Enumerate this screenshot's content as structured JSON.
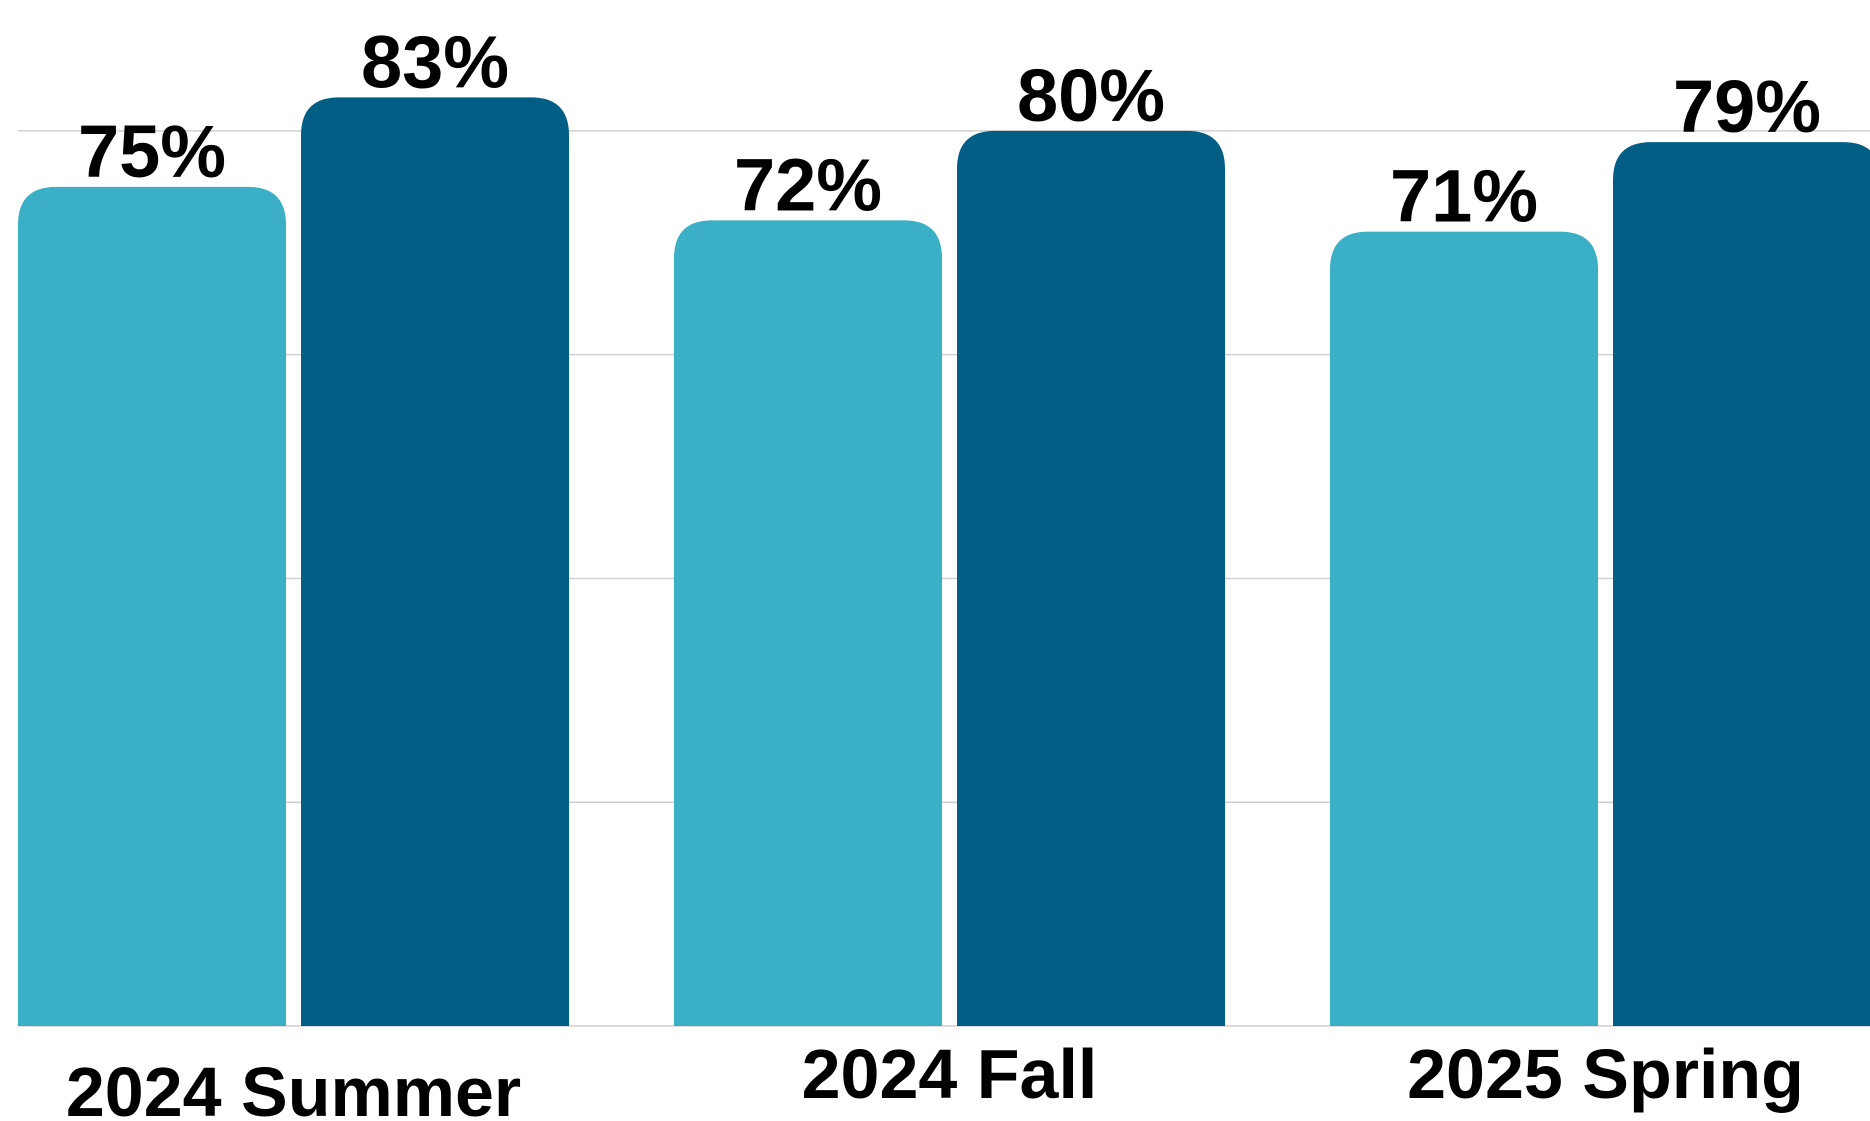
{
  "chart_data": {
    "type": "bar",
    "categories": [
      "2024 Summer",
      "2024 Fall",
      "2025 Spring"
    ],
    "series": [
      {
        "color": "#3aafc6",
        "values": [
          75,
          72,
          71
        ],
        "value_labels": [
          "75%",
          "72%",
          "71%"
        ]
      },
      {
        "color": "#035e85",
        "values": [
          83,
          80,
          79
        ],
        "value_labels": [
          "83%",
          "80%",
          "79%"
        ]
      }
    ],
    "ylim": [
      0,
      91.7
    ],
    "yticks": [
      0,
      20,
      40,
      60,
      80
    ],
    "grid": true
  }
}
